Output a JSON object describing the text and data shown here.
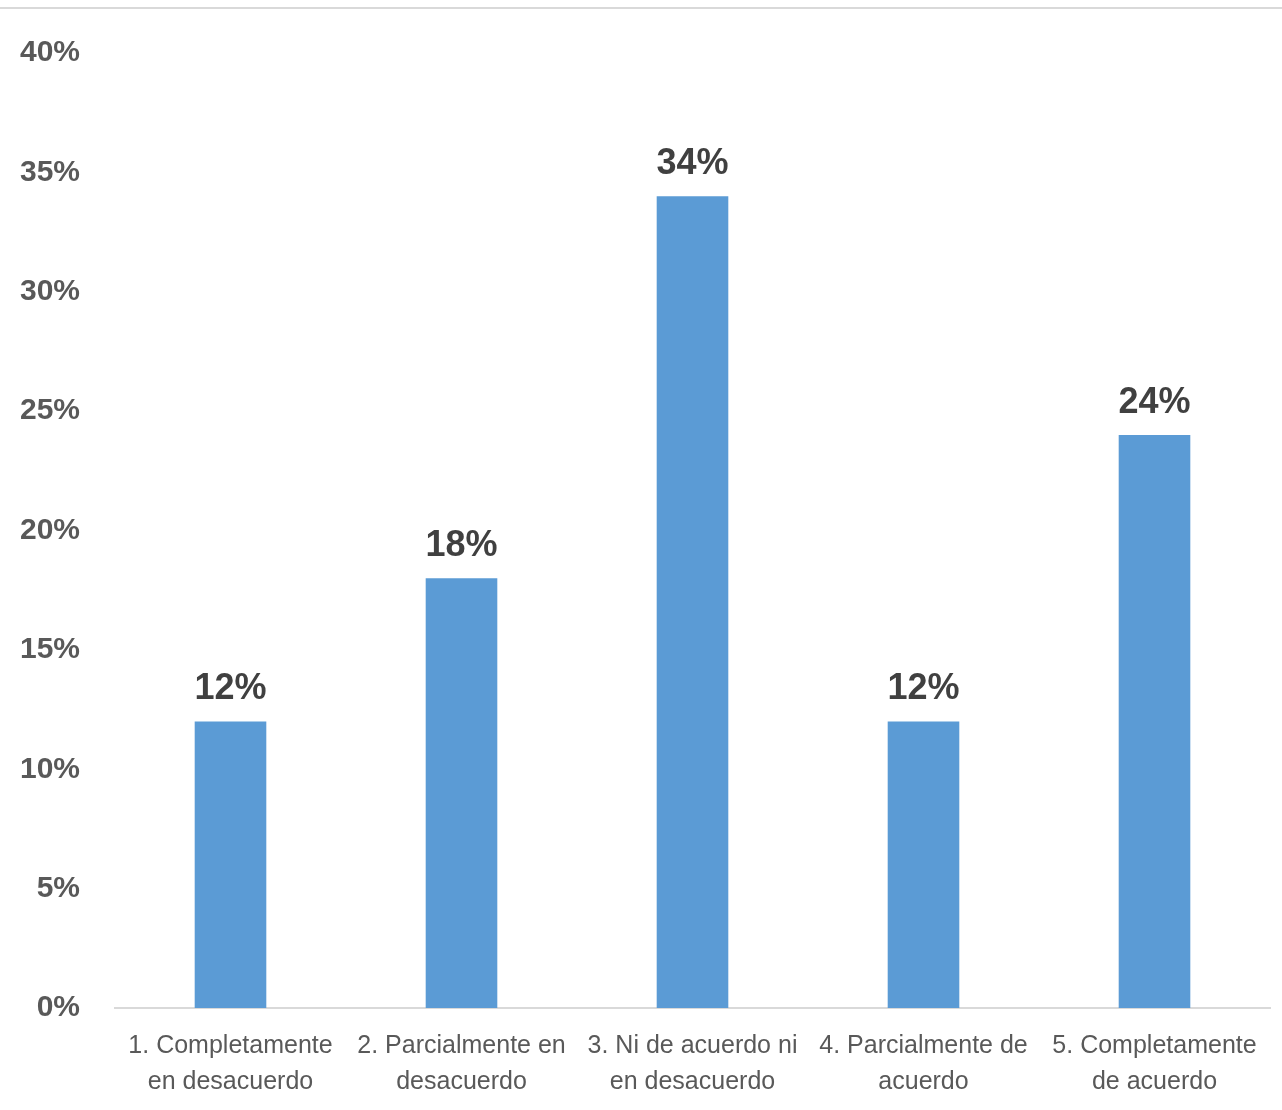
{
  "chart_data": {
    "type": "bar",
    "categories": [
      "1. Completamente en desacuerdo",
      "2. Parcialmente en desacuerdo",
      "3. Ni de acuerdo ni en desacuerdo",
      "4. Parcialmente de acuerdo",
      "5. Completamente de acuerdo"
    ],
    "values": [
      12,
      18,
      34,
      12,
      24
    ],
    "color": "#5b9bd5",
    "value_labels": [
      "12%",
      "18%",
      "34%",
      "12%",
      "24%"
    ],
    "ylim": [
      0,
      40
    ],
    "yticks": [
      {
        "value": 0,
        "label": "0%"
      },
      {
        "value": 5,
        "label": "5%"
      },
      {
        "value": 10,
        "label": "10%"
      },
      {
        "value": 15,
        "label": "15%"
      },
      {
        "value": 20,
        "label": "20%"
      },
      {
        "value": 25,
        "label": "25%"
      },
      {
        "value": 30,
        "label": "30%"
      },
      {
        "value": 35,
        "label": "35%"
      },
      {
        "value": 40,
        "label": "40%"
      }
    ]
  }
}
